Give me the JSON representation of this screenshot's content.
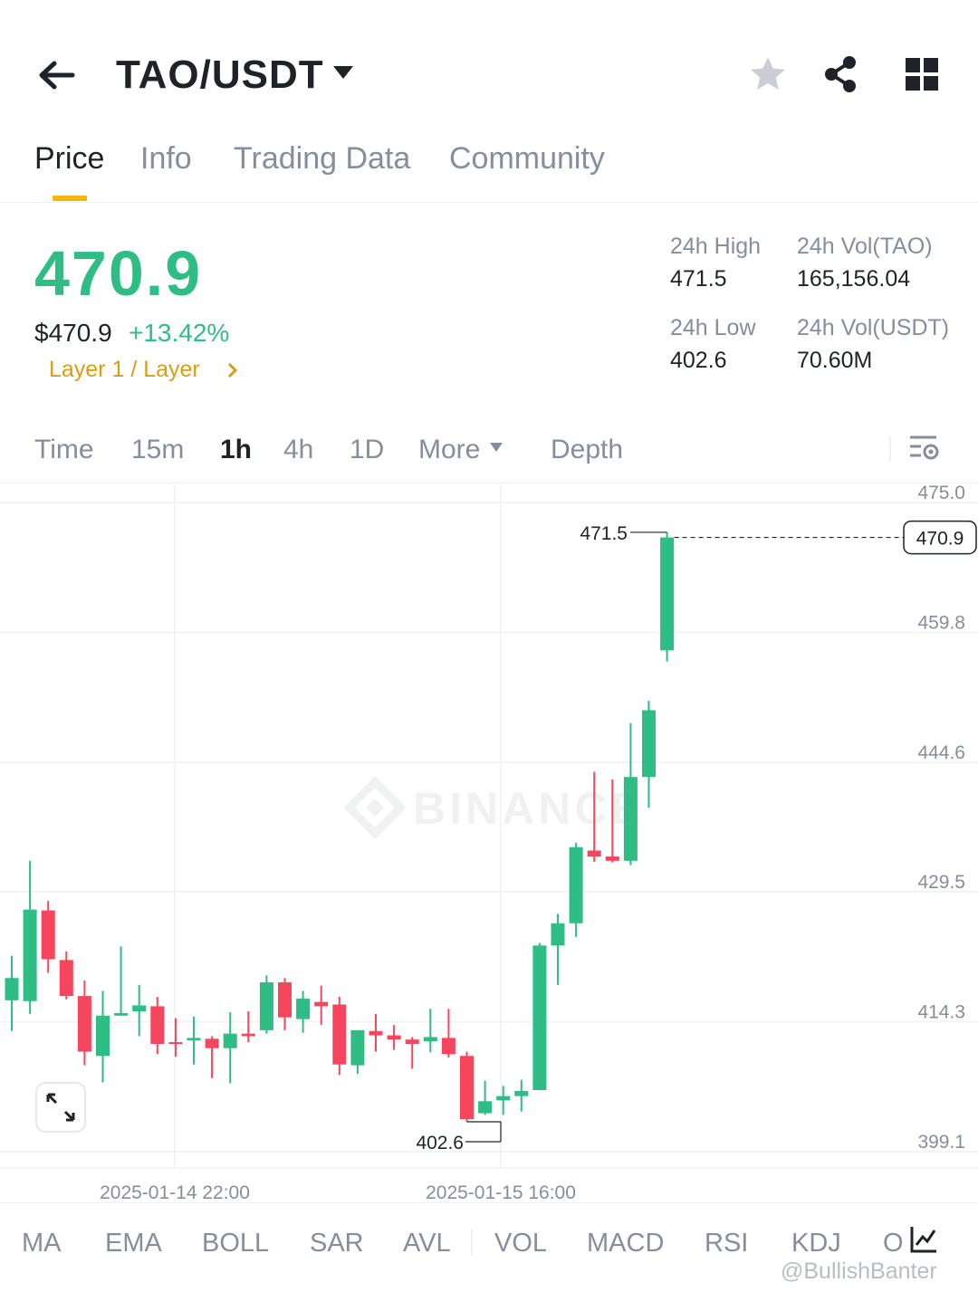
{
  "header": {
    "pair": "TAO/USDT",
    "icons": [
      "back-arrow-icon",
      "caret-down-icon",
      "star-icon",
      "share-icon",
      "grid-icon"
    ]
  },
  "tabs": [
    {
      "label": "Price",
      "active": true
    },
    {
      "label": "Info",
      "active": false
    },
    {
      "label": "Trading Data",
      "active": false
    },
    {
      "label": "Community",
      "active": false
    }
  ],
  "ticker": {
    "last_price": "470.9",
    "usd_price": "$470.9",
    "change": "+13.42%",
    "tag": "Layer 1 / Layer",
    "high_label": "24h High",
    "high": "471.5",
    "low_label": "24h Low",
    "low": "402.6",
    "vol_base_label": "24h Vol(TAO)",
    "vol_base": "165,156.04",
    "vol_quote_label": "24h Vol(USDT)",
    "vol_quote": "70.60M"
  },
  "intervals": [
    {
      "label": "Time",
      "active": false
    },
    {
      "label": "15m",
      "active": false
    },
    {
      "label": "1h",
      "active": true
    },
    {
      "label": "4h",
      "active": false
    },
    {
      "label": "1D",
      "active": false
    },
    {
      "label": "More",
      "active": false
    },
    {
      "label": "Depth",
      "active": false
    }
  ],
  "chart_data": {
    "type": "candlestick",
    "interval": "1h",
    "ylim": [
      397.2,
      477.1
    ],
    "y_ticks": [
      "475.0",
      "459.8",
      "444.6",
      "429.5",
      "414.3",
      "399.1"
    ],
    "x_tick_labels": [
      "2025-01-14 22:00",
      "2025-01-15 16:00"
    ],
    "current_price_label": "470.9",
    "high_marker": {
      "label": "471.5",
      "value": 471.5
    },
    "low_marker": {
      "label": "402.6",
      "value": 402.6
    },
    "watermark": "BINANCE",
    "candles": [
      {
        "o": 416.8,
        "h": 422.0,
        "l": 413.2,
        "c": 419.4
      },
      {
        "o": 416.7,
        "h": 433.1,
        "l": 415.2,
        "c": 427.4
      },
      {
        "o": 427.3,
        "h": 428.4,
        "l": 420.0,
        "c": 421.6
      },
      {
        "o": 421.5,
        "h": 422.5,
        "l": 416.9,
        "c": 417.3
      },
      {
        "o": 417.3,
        "h": 419.1,
        "l": 409.2,
        "c": 410.8
      },
      {
        "o": 410.3,
        "h": 417.9,
        "l": 407.2,
        "c": 415.0
      },
      {
        "o": 415.0,
        "h": 423.1,
        "l": 415.2,
        "c": 415.3
      },
      {
        "o": 415.5,
        "h": 418.6,
        "l": 412.6,
        "c": 416.2
      },
      {
        "o": 416.1,
        "h": 417.2,
        "l": 410.5,
        "c": 411.7
      },
      {
        "o": 411.9,
        "h": 414.7,
        "l": 410.2,
        "c": 411.8
      },
      {
        "o": 412.1,
        "h": 414.9,
        "l": 409.3,
        "c": 412.4
      },
      {
        "o": 412.3,
        "h": 412.6,
        "l": 407.7,
        "c": 411.2
      },
      {
        "o": 411.2,
        "h": 415.4,
        "l": 407.1,
        "c": 412.9
      },
      {
        "o": 412.9,
        "h": 415.5,
        "l": 411.9,
        "c": 412.6
      },
      {
        "o": 413.3,
        "h": 419.7,
        "l": 412.9,
        "c": 418.9
      },
      {
        "o": 418.9,
        "h": 419.4,
        "l": 413.3,
        "c": 414.8
      },
      {
        "o": 414.6,
        "h": 417.9,
        "l": 413.0,
        "c": 417.0
      },
      {
        "o": 416.6,
        "h": 418.5,
        "l": 413.9,
        "c": 416.1
      },
      {
        "o": 416.3,
        "h": 417.2,
        "l": 408.1,
        "c": 409.3
      },
      {
        "o": 409.2,
        "h": 413.3,
        "l": 408.2,
        "c": 413.3
      },
      {
        "o": 413.2,
        "h": 415.2,
        "l": 410.8,
        "c": 412.7
      },
      {
        "o": 412.7,
        "h": 413.9,
        "l": 411.0,
        "c": 412.2
      },
      {
        "o": 412.2,
        "h": 412.5,
        "l": 408.8,
        "c": 411.7
      },
      {
        "o": 412.0,
        "h": 415.8,
        "l": 410.7,
        "c": 412.5
      },
      {
        "o": 412.4,
        "h": 415.8,
        "l": 410.1,
        "c": 410.5
      },
      {
        "o": 410.3,
        "h": 410.8,
        "l": 402.6,
        "c": 402.9
      },
      {
        "o": 403.6,
        "h": 407.4,
        "l": 403.4,
        "c": 405.0
      },
      {
        "o": 405.1,
        "h": 406.8,
        "l": 403.4,
        "c": 405.6
      },
      {
        "o": 405.6,
        "h": 407.5,
        "l": 403.8,
        "c": 406.2
      },
      {
        "o": 406.3,
        "h": 423.5,
        "l": 406.7,
        "c": 423.2
      },
      {
        "o": 423.2,
        "h": 426.9,
        "l": 418.6,
        "c": 425.8
      },
      {
        "o": 425.8,
        "h": 435.2,
        "l": 424.2,
        "c": 434.7
      },
      {
        "o": 434.3,
        "h": 443.5,
        "l": 433.0,
        "c": 433.6
      },
      {
        "o": 433.6,
        "h": 442.6,
        "l": 432.9,
        "c": 433.1
      },
      {
        "o": 433.1,
        "h": 449.2,
        "l": 432.6,
        "c": 442.9
      },
      {
        "o": 442.9,
        "h": 451.8,
        "l": 439.3,
        "c": 450.7
      },
      {
        "o": 457.7,
        "h": 471.5,
        "l": 456.4,
        "c": 470.9
      }
    ]
  },
  "indicators": [
    {
      "label": "MA"
    },
    {
      "label": "EMA"
    },
    {
      "label": "BOLL"
    },
    {
      "label": "SAR"
    },
    {
      "label": "AVL"
    },
    {
      "label": "VOL"
    },
    {
      "label": "MACD"
    },
    {
      "label": "RSI"
    },
    {
      "label": "KDJ"
    },
    {
      "label": "O"
    }
  ],
  "watermark_handle": "@BullishBanter",
  "colors": {
    "up": "#2ebd85",
    "down": "#f6465d",
    "accent": "#f0b90b",
    "tag": "#d89f10",
    "muted": "#848e9c",
    "text": "#1e2329"
  }
}
